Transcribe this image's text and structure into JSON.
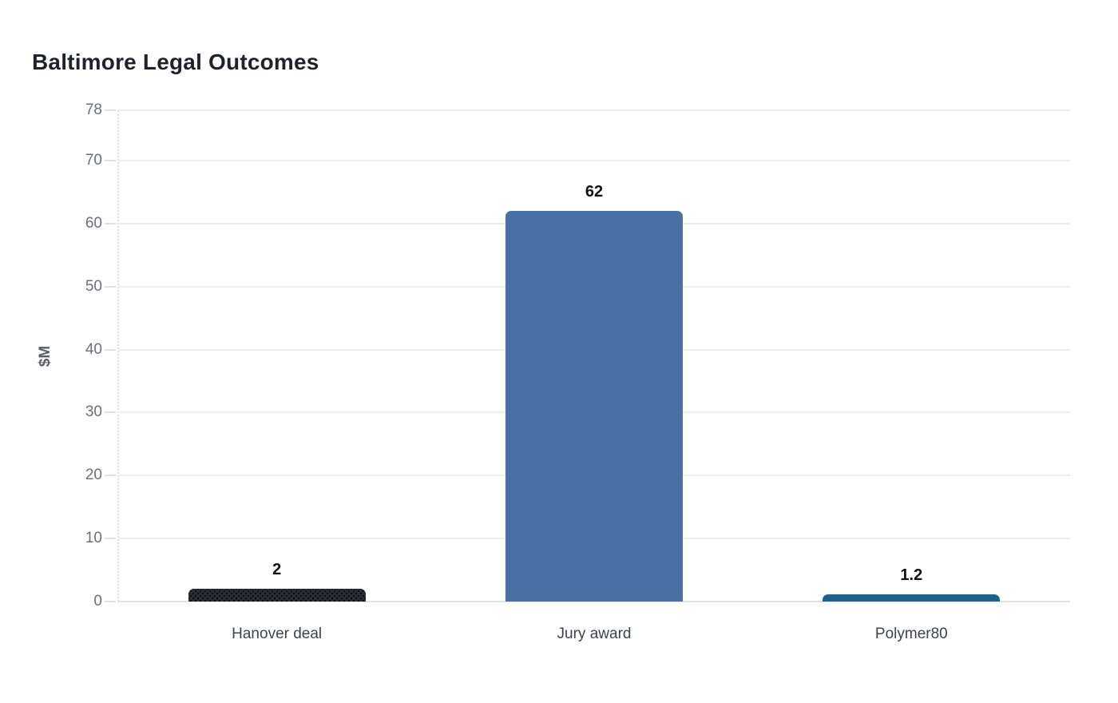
{
  "page": {
    "background_color": "#ffffff"
  },
  "chart_data": {
    "type": "bar",
    "title": "Baltimore Legal Outcomes",
    "xlabel": "",
    "ylabel": "$M",
    "categories": [
      "Hanover deal",
      "Jury award",
      "Polymer80"
    ],
    "values": [
      2,
      62,
      1.2
    ],
    "value_labels": [
      "2",
      "62",
      "1.2"
    ],
    "bar_colors": [
      "#2b3036",
      "#4a70a8",
      "#1f618d"
    ],
    "bar_patterns": [
      "dots",
      "solid",
      "solid"
    ],
    "ylim": [
      0,
      78
    ],
    "yticks": [
      0,
      10,
      20,
      30,
      40,
      50,
      60,
      70,
      78
    ],
    "grid": "horizontal",
    "legend_position": "none",
    "colors": {
      "gridline": "#ededed",
      "zero_line": "#e2e2e2",
      "tick_label": "#6b7077",
      "category_label": "#3d434d",
      "value_label": "#101114",
      "axis_label": "#5a5f66",
      "title": "#1e232b"
    }
  }
}
